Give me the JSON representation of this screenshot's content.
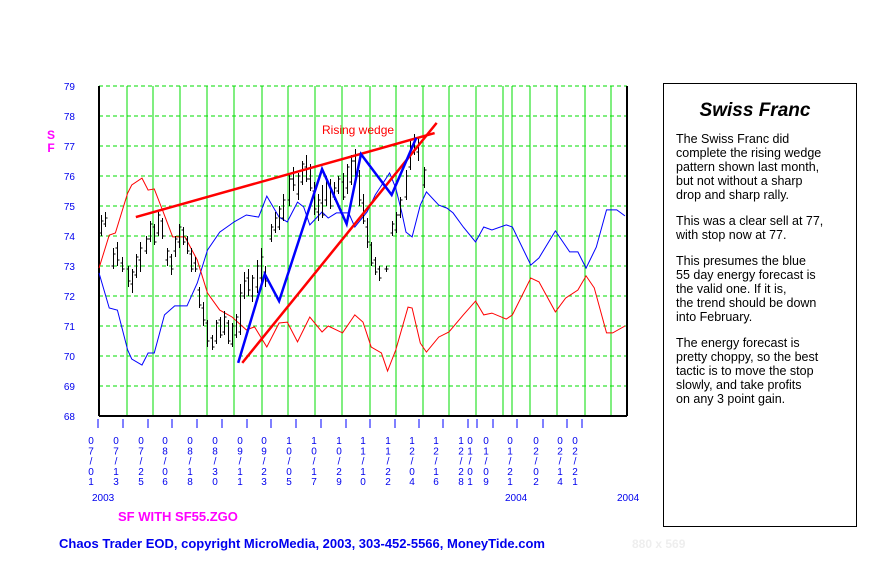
{
  "chart_data": {
    "type": "line",
    "title": "SF WITH SF55.ZGO",
    "ylabel": "SF",
    "ylim": [
      68,
      79
    ],
    "yticks": [
      "79",
      "78",
      "77",
      "76",
      "75",
      "74",
      "73",
      "72",
      "71",
      "70",
      "69",
      "68"
    ],
    "xlim": [
      0,
      258
    ],
    "x_unit": "trading-day index from 07/01/2003",
    "grid": true,
    "xtick_labels": [
      "07/01",
      "07/13",
      "07/25",
      "08/06",
      "08/18",
      "08/30",
      "09/11",
      "09/23",
      "10/05",
      "10/17",
      "10/29",
      "11/10",
      "11/22",
      "12/04",
      "12/16",
      "12/28",
      "01/01",
      "01/09",
      "01/21",
      "02/02",
      "02/14",
      "02/21"
    ],
    "year_labels": [
      "2003",
      "2004",
      "2004"
    ],
    "annotation": "Rising wedge",
    "colors": {
      "forecast_blue": "#0000ff",
      "forecast_red": "#ff0000",
      "price": "#000000",
      "grid": "#00dd00",
      "axis_text": "#0000ee"
    },
    "series": [
      {
        "name": "Blue 55 day energy forecast",
        "color": "#0000ff",
        "points": [
          [
            0,
            72.77
          ],
          [
            5,
            71.6
          ],
          [
            9,
            71.53
          ],
          [
            14,
            70.2
          ],
          [
            16,
            69.9
          ],
          [
            21,
            69.7
          ],
          [
            24,
            70.1
          ],
          [
            27,
            70.1
          ],
          [
            32,
            71.37
          ],
          [
            37,
            71.67
          ],
          [
            43,
            71.67
          ],
          [
            48,
            72.43
          ],
          [
            53,
            73.53
          ],
          [
            59,
            74.13
          ],
          [
            64,
            74.37
          ],
          [
            66,
            74.47
          ],
          [
            72,
            74.7
          ],
          [
            78,
            74.63
          ],
          [
            82,
            75.33
          ],
          [
            88,
            74.63
          ],
          [
            92,
            74.47
          ],
          [
            97,
            75.13
          ],
          [
            100,
            74.97
          ],
          [
            103,
            74.37
          ],
          [
            109,
            74.8
          ],
          [
            112,
            74.6
          ],
          [
            116,
            74.77
          ],
          [
            122,
            74.77
          ],
          [
            125,
            74.3
          ],
          [
            131,
            74.8
          ],
          [
            135,
            75.37
          ],
          [
            142,
            76.1
          ],
          [
            145,
            75.6
          ],
          [
            148,
            74.77
          ],
          [
            150,
            74.13
          ],
          [
            153,
            73.97
          ],
          [
            157,
            75.03
          ],
          [
            160,
            75.47
          ],
          [
            166,
            75.03
          ],
          [
            170,
            74.93
          ],
          [
            173,
            74.77
          ],
          [
            178,
            74.3
          ],
          [
            184,
            73.8
          ],
          [
            188,
            74.3
          ],
          [
            192,
            74.2
          ],
          [
            199,
            74.37
          ],
          [
            202,
            74.3
          ],
          [
            211,
            73.03
          ],
          [
            215,
            73.27
          ],
          [
            223,
            74.17
          ],
          [
            230,
            73.47
          ],
          [
            234,
            73.47
          ],
          [
            238,
            72.93
          ],
          [
            243,
            73.63
          ],
          [
            248,
            74.87
          ],
          [
            253,
            74.87
          ],
          [
            257,
            74.67
          ]
        ]
      },
      {
        "name": "Red energy forecast",
        "color": "#ff0000",
        "points": [
          [
            0,
            72.93
          ],
          [
            5,
            74.03
          ],
          [
            8,
            74.1
          ],
          [
            14,
            75.43
          ],
          [
            16,
            75.7
          ],
          [
            21,
            75.93
          ],
          [
            24,
            75.53
          ],
          [
            27,
            75.57
          ],
          [
            31,
            74.87
          ],
          [
            36,
            73.97
          ],
          [
            42,
            73.97
          ],
          [
            48,
            73.2
          ],
          [
            53,
            72.1
          ],
          [
            59,
            71.53
          ],
          [
            65,
            71.3
          ],
          [
            72,
            70.87
          ],
          [
            76,
            70.97
          ],
          [
            82,
            70.3
          ],
          [
            88,
            71.1
          ],
          [
            92,
            71.13
          ],
          [
            97,
            70.47
          ],
          [
            103,
            71.3
          ],
          [
            109,
            70.8
          ],
          [
            112,
            71
          ],
          [
            119,
            70.77
          ],
          [
            122,
            71.07
          ],
          [
            125,
            71.37
          ],
          [
            129,
            71.13
          ],
          [
            133,
            70.3
          ],
          [
            138,
            70.1
          ],
          [
            141,
            69.5
          ],
          [
            145,
            70.2
          ],
          [
            151,
            71.63
          ],
          [
            153,
            71.6
          ],
          [
            157,
            70.43
          ],
          [
            160,
            70.13
          ],
          [
            166,
            70.63
          ],
          [
            171,
            70.8
          ],
          [
            178,
            71.37
          ],
          [
            184,
            71.83
          ],
          [
            188,
            71.37
          ],
          [
            192,
            71.43
          ],
          [
            199,
            71.23
          ],
          [
            202,
            71.37
          ],
          [
            211,
            72.6
          ],
          [
            215,
            72.47
          ],
          [
            219,
            71.97
          ],
          [
            223,
            71.47
          ],
          [
            228,
            71.93
          ],
          [
            234,
            72.2
          ],
          [
            238,
            72.67
          ],
          [
            242,
            72.27
          ],
          [
            248,
            70.77
          ],
          [
            251,
            70.77
          ],
          [
            257,
            71
          ]
        ]
      }
    ],
    "price_bars": [
      [
        1,
        74.7,
        74.0,
        74.1,
        74.5
      ],
      [
        3,
        74.8,
        74.3,
        74.4,
        74.6
      ],
      [
        7,
        73.6,
        72.9,
        73.0,
        73.4
      ],
      [
        9,
        73.8,
        73.0,
        73.6,
        73.2
      ],
      [
        11,
        73.3,
        72.8,
        73.1,
        72.9
      ],
      [
        14,
        73.0,
        72.3,
        72.9,
        72.5
      ],
      [
        16,
        72.9,
        72.1,
        72.4,
        72.8
      ],
      [
        18,
        73.4,
        72.6,
        72.7,
        73.3
      ],
      [
        20,
        73.8,
        72.8,
        73.2,
        73.6
      ],
      [
        23,
        74.0,
        73.4,
        73.5,
        73.9
      ],
      [
        25,
        74.5,
        73.8,
        73.9,
        74.4
      ],
      [
        27,
        74.4,
        73.7,
        74.3,
        73.8
      ],
      [
        29,
        74.8,
        74.0,
        74.1,
        74.7
      ],
      [
        31,
        74.6,
        73.9,
        74.5,
        74.0
      ],
      [
        33,
        73.6,
        73.0,
        73.2,
        73.5
      ],
      [
        35,
        73.4,
        72.7,
        73.3,
        72.9
      ],
      [
        37,
        74.0,
        73.3,
        73.5,
        73.9
      ],
      [
        39,
        74.4,
        73.6,
        73.8,
        74.3
      ],
      [
        41,
        74.3,
        73.7,
        74.2,
        73.8
      ],
      [
        43,
        74.0,
        73.4,
        73.9,
        73.5
      ],
      [
        45,
        73.6,
        72.8,
        73.4,
        72.9
      ],
      [
        47,
        73.3,
        72.8,
        73.1,
        72.9
      ],
      [
        49,
        72.3,
        71.6,
        72.2,
        71.7
      ],
      [
        51,
        71.8,
        71.0,
        71.6,
        71.2
      ],
      [
        53,
        71.2,
        70.3,
        71.1,
        70.5
      ],
      [
        55,
        70.7,
        70.2,
        70.6,
        70.3
      ],
      [
        57,
        71.2,
        70.4,
        70.5,
        71.1
      ],
      [
        59,
        71.3,
        70.6,
        71.2,
        70.7
      ],
      [
        61,
        71.5,
        70.7,
        70.8,
        71.3
      ],
      [
        63,
        71.2,
        70.4,
        71.1,
        70.5
      ],
      [
        65,
        71.1,
        70.3,
        70.4,
        71.0
      ],
      [
        67,
        71.4,
        70.6,
        70.7,
        71.3
      ],
      [
        69,
        72.4,
        70.7,
        70.8,
        72.1
      ],
      [
        71,
        72.8,
        71.9,
        72.0,
        72.5
      ],
      [
        73,
        72.9,
        72.0,
        72.6,
        72.2
      ],
      [
        75,
        72.7,
        71.8,
        72.0,
        72.6
      ],
      [
        77,
        73.2,
        72.1,
        72.3,
        73.0
      ],
      [
        79,
        73.6,
        72.4,
        72.6,
        73.3
      ],
      [
        81,
        73.0,
        72.3,
        72.8,
        72.5
      ],
      [
        84,
        74.4,
        73.8,
        73.9,
        74.3
      ],
      [
        86,
        74.8,
        74.1,
        74.2,
        74.6
      ],
      [
        88,
        75.0,
        74.2,
        74.3,
        74.9
      ],
      [
        90,
        75.4,
        74.5,
        74.6,
        75.2
      ],
      [
        93,
        76.1,
        75.0,
        75.2,
        75.9
      ],
      [
        95,
        76.3,
        75.5,
        75.9,
        75.7
      ],
      [
        97,
        76.1,
        75.2,
        75.4,
        76.0
      ],
      [
        99,
        76.5,
        75.7,
        75.8,
        76.4
      ],
      [
        101,
        76.7,
        75.8,
        76.3,
        75.9
      ],
      [
        103,
        76.4,
        75.5,
        75.9,
        75.6
      ],
      [
        105,
        75.8,
        74.7,
        75.5,
        74.9
      ],
      [
        107,
        75.4,
        74.5,
        74.8,
        75.2
      ],
      [
        109,
        75.7,
        74.6,
        75.1,
        74.7
      ],
      [
        111,
        76.0,
        75.0,
        75.2,
        75.8
      ],
      [
        113,
        75.9,
        74.9,
        75.7,
        75.0
      ],
      [
        115,
        75.8,
        75.2,
        75.3,
        75.6
      ],
      [
        117,
        76.0,
        75.4,
        75.5,
        75.9
      ],
      [
        119,
        76.1,
        75.2,
        75.8,
        75.3
      ],
      [
        121,
        76.4,
        75.4,
        75.6,
        76.3
      ],
      [
        123,
        76.7,
        75.7,
        75.8,
        76.5
      ],
      [
        125,
        76.9,
        75.9,
        76.5,
        76.0
      ],
      [
        127,
        76.2,
        75.0,
        76.0,
        75.2
      ],
      [
        129,
        75.4,
        74.4,
        75.1,
        74.5
      ],
      [
        131,
        74.6,
        73.6,
        74.3,
        73.8
      ],
      [
        133,
        73.8,
        73.0,
        73.7,
        73.1
      ],
      [
        135,
        73.3,
        72.7,
        73.2,
        72.8
      ],
      [
        137,
        73.0,
        72.5,
        72.9,
        72.6
      ],
      [
        140,
        73.0,
        72.8,
        72.9,
        72.9
      ],
      [
        143,
        74.5,
        74.0,
        74.1,
        74.4
      ],
      [
        145,
        74.8,
        74.1,
        74.2,
        74.7
      ],
      [
        147,
        75.3,
        74.6,
        74.7,
        75.2
      ],
      [
        150,
        76.2,
        75.2,
        75.3,
        76.0
      ],
      [
        152,
        77.2,
        76.2,
        76.3,
        77.0
      ],
      [
        154,
        77.4,
        76.7,
        77.0,
        76.9
      ],
      [
        156,
        77.3,
        76.5,
        76.8,
        77.1
      ],
      [
        159,
        76.3,
        75.6,
        75.7,
        76.2
      ]
    ],
    "wedge_upper": [
      [
        18,
        74.63
      ],
      [
        164,
        77.43
      ]
    ],
    "wedge_lower": [
      [
        70,
        69.77
      ],
      [
        165,
        77.77
      ]
    ],
    "zigzag": [
      [
        68,
        69.77
      ],
      [
        81,
        72.73
      ],
      [
        88,
        71.83
      ],
      [
        109,
        76.23
      ],
      [
        121,
        74.4
      ],
      [
        128,
        76.73
      ],
      [
        143,
        75.37
      ],
      [
        155,
        77.27
      ]
    ]
  },
  "textbox": {
    "title": "Swiss Franc",
    "paragraphs": [
      "The Swiss Franc did\ncomplete the rising wedge\npattern shown last month,\nbut not without a sharp\ndrop and sharp rally.",
      "This was a clear sell at 77,\nwith stop now at 77.",
      "This presumes the blue\n55 day energy forecast is\nthe valid one.  If it is,\nthe trend should be down\ninto February.",
      "The energy forecast is\npretty choppy, so the best\ntactic is to move the stop\nslowly, and take profits\non any 3 point gain."
    ]
  },
  "subtitle": "SF WITH SF55.ZGO",
  "footer": "Chaos Trader EOD, copyright MicroMedia, 2003, 303-452-5566, MoneyTide.com",
  "dimensions_label": "880 x 569"
}
